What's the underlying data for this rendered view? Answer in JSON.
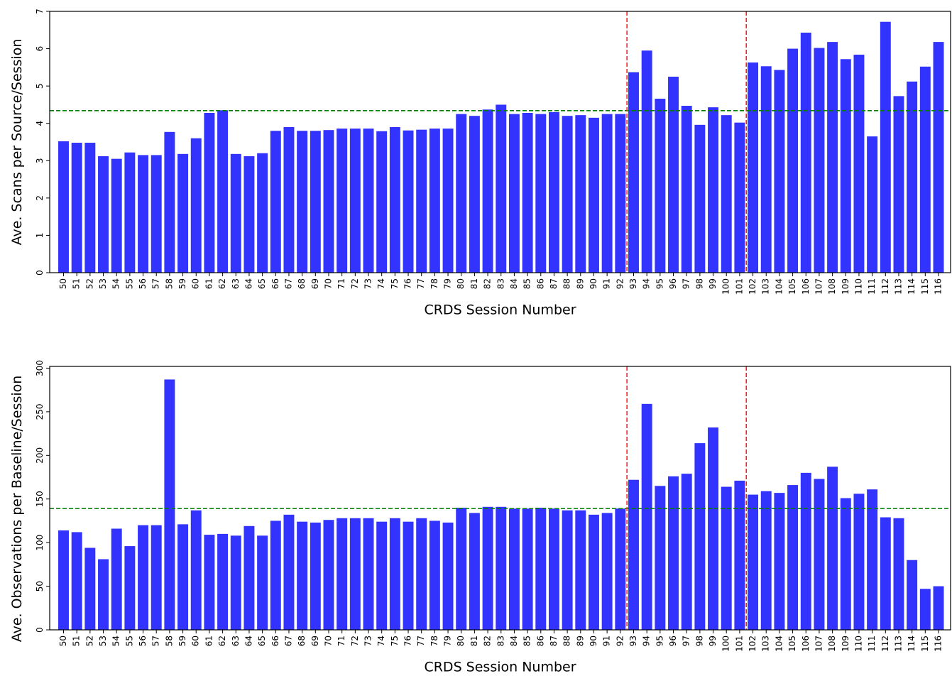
{
  "chart_data": [
    {
      "type": "bar",
      "xlabel": "CRDS Session Number",
      "ylabel": "Ave. Scans per Source/Session",
      "categories": [
        "50",
        "51",
        "52",
        "53",
        "54",
        "55",
        "56",
        "57",
        "58",
        "59",
        "60",
        "61",
        "62",
        "63",
        "64",
        "65",
        "66",
        "67",
        "68",
        "69",
        "70",
        "71",
        "72",
        "73",
        "74",
        "75",
        "76",
        "77",
        "78",
        "79",
        "80",
        "81",
        "82",
        "83",
        "84",
        "85",
        "86",
        "87",
        "88",
        "89",
        "90",
        "91",
        "92",
        "93",
        "94",
        "95",
        "96",
        "97",
        "98",
        "99",
        "100",
        "101",
        "102",
        "103",
        "104",
        "105",
        "106",
        "107",
        "108",
        "109",
        "110",
        "111",
        "112",
        "113",
        "114",
        "115",
        "116"
      ],
      "values": [
        3.52,
        3.48,
        3.48,
        3.12,
        3.05,
        3.22,
        3.15,
        3.15,
        3.77,
        3.18,
        3.6,
        4.28,
        4.35,
        3.18,
        3.12,
        3.2,
        3.8,
        3.9,
        3.8,
        3.8,
        3.82,
        3.86,
        3.86,
        3.86,
        3.79,
        3.9,
        3.81,
        3.83,
        3.86,
        3.86,
        4.25,
        4.2,
        4.37,
        4.5,
        4.25,
        4.28,
        4.25,
        4.3,
        4.2,
        4.22,
        4.15,
        4.25,
        4.25,
        5.37,
        5.95,
        4.66,
        5.25,
        4.47,
        3.96,
        4.43,
        4.22,
        4.02,
        5.63,
        5.53,
        5.43,
        6.0,
        6.43,
        6.02,
        6.18,
        5.72,
        5.84,
        3.65,
        6.72,
        4.73,
        5.12,
        5.52,
        6.18
      ],
      "color": "#3333ff",
      "ylim": [
        0,
        7
      ],
      "yticks": [
        0,
        1,
        2,
        3,
        4,
        5,
        6,
        7
      ],
      "hline": 4.34,
      "hline_color": "#008000",
      "vlines_before": [
        "93",
        "102"
      ],
      "vline_color": "#ff2020"
    },
    {
      "type": "bar",
      "xlabel": "CRDS Session Number",
      "ylabel": "Ave. Observations per Baseline/Session",
      "categories": [
        "50",
        "51",
        "52",
        "53",
        "54",
        "55",
        "56",
        "57",
        "58",
        "59",
        "60",
        "61",
        "62",
        "63",
        "64",
        "65",
        "66",
        "67",
        "68",
        "69",
        "70",
        "71",
        "72",
        "73",
        "74",
        "75",
        "76",
        "77",
        "78",
        "79",
        "80",
        "81",
        "82",
        "83",
        "84",
        "85",
        "86",
        "87",
        "88",
        "89",
        "90",
        "91",
        "92",
        "93",
        "94",
        "95",
        "96",
        "97",
        "98",
        "99",
        "100",
        "101",
        "102",
        "103",
        "104",
        "105",
        "106",
        "107",
        "108",
        "109",
        "110",
        "111",
        "112",
        "113",
        "114",
        "115",
        "116"
      ],
      "values": [
        114,
        112,
        94,
        81,
        116,
        96,
        120,
        120,
        287,
        121,
        137,
        109,
        110,
        108,
        119,
        108,
        125,
        132,
        124,
        123,
        126,
        128,
        128,
        128,
        124,
        128,
        124,
        128,
        125,
        123,
        140,
        134,
        141,
        141,
        139,
        139,
        140,
        139,
        137,
        137,
        132,
        134,
        139,
        172,
        259,
        165,
        176,
        179,
        214,
        232,
        164,
        171,
        155,
        159,
        157,
        166,
        180,
        173,
        187,
        151,
        156,
        161,
        129,
        128,
        80,
        47,
        50
      ],
      "color": "#3333ff",
      "ylim": [
        0,
        302
      ],
      "yticks": [
        0,
        50,
        100,
        150,
        200,
        250,
        300
      ],
      "hline": 139,
      "hline_color": "#008000",
      "vlines_before": [
        "93",
        "102"
      ],
      "vline_color": "#ff2020"
    }
  ]
}
